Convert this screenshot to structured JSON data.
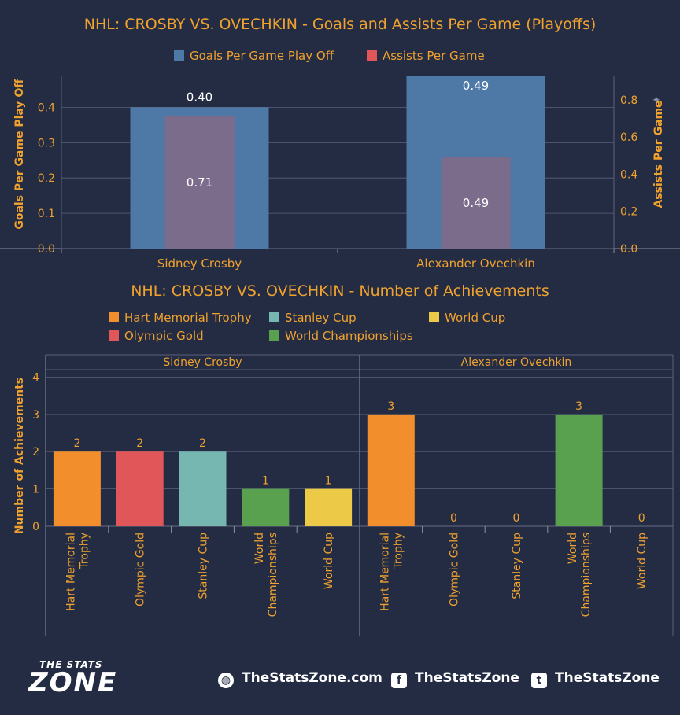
{
  "colors": {
    "background": "#242c44",
    "accent": "#f0a22e",
    "goals": "#4e79a7",
    "assists": "#e15759",
    "hart": "#f28e2b",
    "stanley": "#76b7b2",
    "worldcup": "#edc948",
    "olympic": "#e15759",
    "worldchamps": "#59a14f"
  },
  "chart_data": [
    {
      "type": "bar",
      "title": "NHL: CROSBY VS. OVECHKIN - Goals and Assists Per Game (Playoffs)",
      "categories": [
        "Sidney Crosby",
        "Alexander Ovechkin"
      ],
      "series": [
        {
          "name": "Goals Per Game Play Off",
          "values": [
            0.4,
            0.49
          ],
          "axis": "left",
          "color": "#4e79a7"
        },
        {
          "name": "Assists Per Game",
          "values": [
            0.71,
            0.49
          ],
          "axis": "right",
          "color": "#e15759"
        }
      ],
      "ylabel": "Goals Per Game Play Off",
      "ylabel_right": "Assists Per Game",
      "ylim": [
        0,
        0.49
      ],
      "ylim_right": [
        0,
        0.93
      ],
      "yticks": [
        "0.0",
        "0.1",
        "0.2",
        "0.3",
        "0.4"
      ],
      "yticks_right": [
        "0.0",
        "0.2",
        "0.4",
        "0.6",
        "0.8"
      ],
      "grid": true,
      "legend": "top-center"
    },
    {
      "type": "bar",
      "title": "NHL: CROSBY VS. OVECHKIN - Number of Achievements",
      "panels": [
        "Sidney Crosby",
        "Alexander Ovechkin"
      ],
      "categories": [
        "Hart Memorial Trophy",
        "Olympic Gold",
        "Stanley Cup",
        "World Championships",
        "World Cup"
      ],
      "values": [
        [
          2,
          2,
          2,
          1,
          1
        ],
        [
          3,
          0,
          0,
          3,
          0
        ]
      ],
      "data_labels": [
        [
          "2",
          "2",
          "2",
          "1",
          "1"
        ],
        [
          "3",
          "0",
          "0",
          "3",
          "0"
        ]
      ],
      "category_labels": [
        [
          "Hart Memorial",
          "Trophy"
        ],
        [
          "Olympic Gold"
        ],
        [
          "Stanley Cup"
        ],
        [
          "World",
          "Championships"
        ],
        [
          "World Cup"
        ]
      ],
      "ylabel": "Number of Achievements",
      "ylim": [
        0,
        4.2
      ],
      "yticks": [
        "0",
        "1",
        "2",
        "3",
        "4"
      ],
      "legend_items": [
        "Hart Memorial Trophy",
        "Stanley Cup",
        "World Cup",
        "Olympic Gold",
        "World Championships"
      ],
      "grid": true,
      "legend": "top-center"
    }
  ],
  "footer": {
    "website": "TheStatsZone.com",
    "facebook": "TheStatsZone",
    "twitter": "TheStatsZone",
    "logo_line1": "THE STATS",
    "logo_line2": "ZONE",
    "globe_icon": "globe-icon",
    "facebook_icon": "facebook-icon",
    "twitter_icon": "twitter-icon"
  }
}
